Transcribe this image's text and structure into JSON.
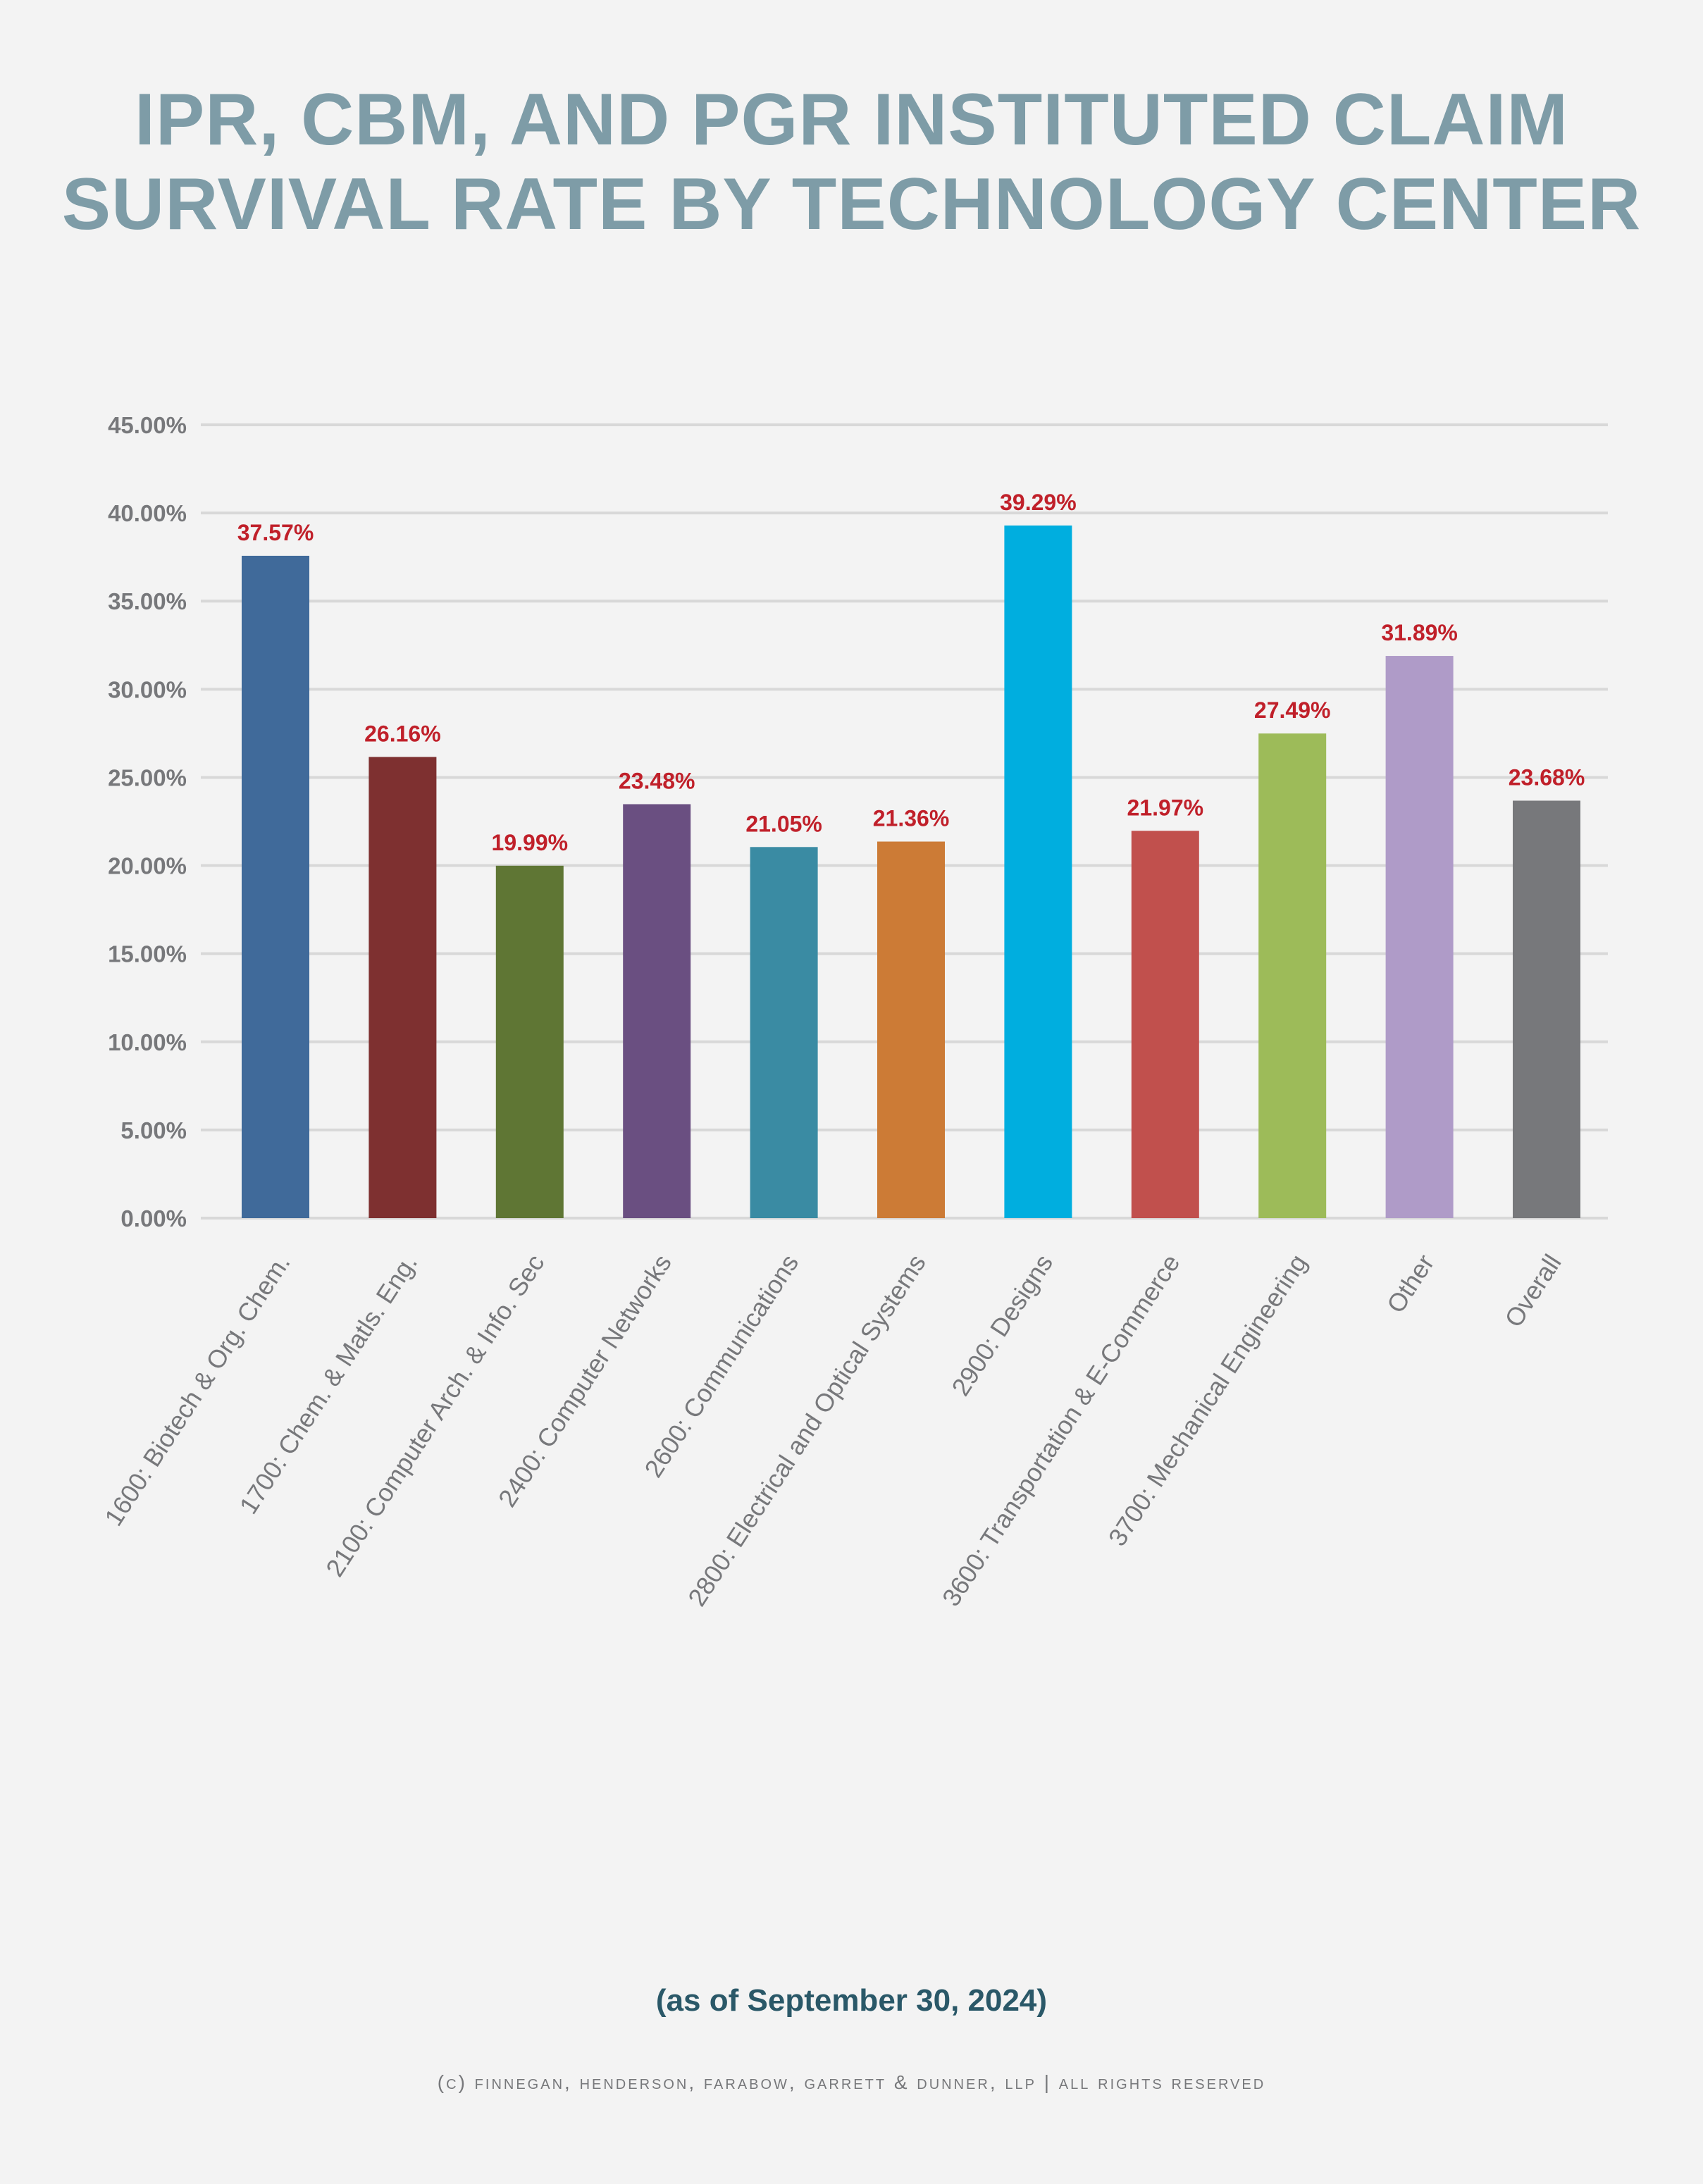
{
  "chart_data": {
    "type": "bar",
    "title": [
      "IPR, CBM, AND PGR INSTITUTED CLAIM",
      "SURVIVAL RATE BY TECHNOLOGY CENTER"
    ],
    "subtitle": "(as of September 30, 2024)",
    "categories": [
      "1600: Biotech & Org. Chem.",
      "1700: Chem. & Matls. Eng.",
      "2100: Computer Arch. & Info. Sec",
      "2400: Computer Networks",
      "2600: Communications",
      "2800: Electrical and Optical Systems",
      "2900: Designs",
      "3600: Transportation & E-Commerce",
      "3700: Mechanical Engineering",
      "Other",
      "Overall"
    ],
    "values": [
      37.57,
      26.16,
      19.99,
      23.48,
      21.05,
      21.36,
      39.29,
      21.97,
      27.49,
      31.89,
      23.68
    ],
    "data_labels": [
      "37.57%",
      "26.16%",
      "19.99%",
      "23.48%",
      "21.05%",
      "21.36%",
      "39.29%",
      "21.97%",
      "27.49%",
      "31.89%",
      "23.68%"
    ],
    "colors": [
      "#406a9a",
      "#7e3030",
      "#5f7634",
      "#6a4f81",
      "#3a8ba3",
      "#cc7b36",
      "#00aedf",
      "#c1504d",
      "#9dbb59",
      "#af9bc8",
      "#77787b"
    ],
    "yticks": [
      "0.00%",
      "5.00%",
      "10.00%",
      "15.00%",
      "20.00%",
      "25.00%",
      "30.00%",
      "35.00%",
      "40.00%",
      "45.00%"
    ],
    "ylim": [
      0,
      45
    ],
    "xlabel": "",
    "ylabel": "",
    "grid": true,
    "label_color": "#c0202a"
  },
  "footer": "(C) Finnegan, Henderson, Farabow, Garrett & Dunner, LLP | All Rights Reserved"
}
